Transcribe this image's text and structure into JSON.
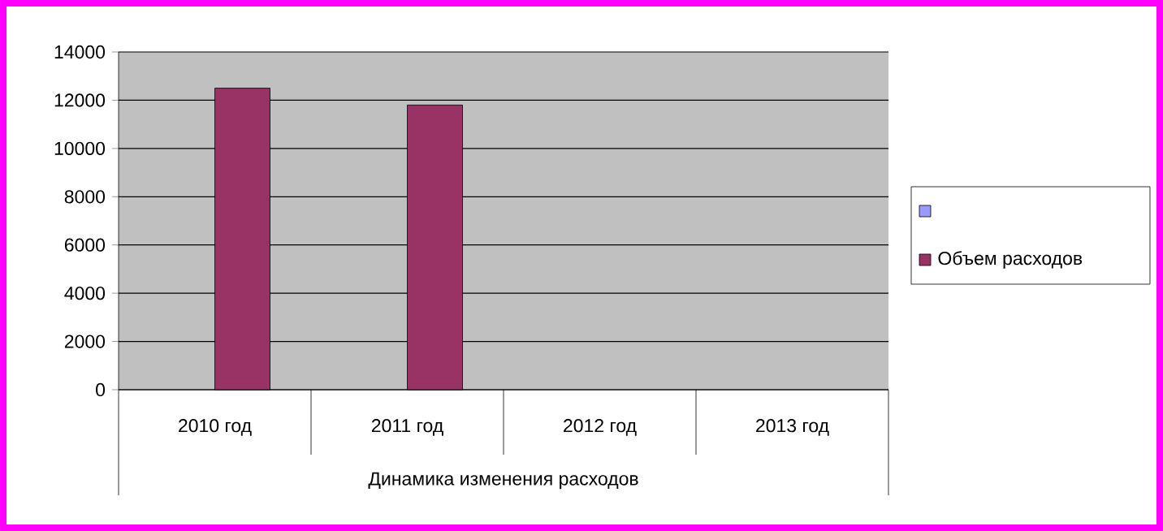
{
  "chart_data": {
    "type": "bar",
    "xlabel": "Динамика изменения расходов",
    "categories": [
      "2010 год",
      "2011 год",
      "2012 год",
      "2013 год"
    ],
    "series": [
      {
        "color": "#9999ff",
        "values": [
          null,
          null,
          null,
          null
        ]
      },
      {
        "name": "Объем расходов",
        "color": "#993366",
        "values": [
          12500,
          11800,
          null,
          null
        ]
      }
    ],
    "ylim": [
      0,
      14000
    ],
    "yticks": [
      0,
      2000,
      4000,
      6000,
      8000,
      10000,
      12000,
      14000
    ],
    "grid": "y",
    "legend": "right"
  }
}
